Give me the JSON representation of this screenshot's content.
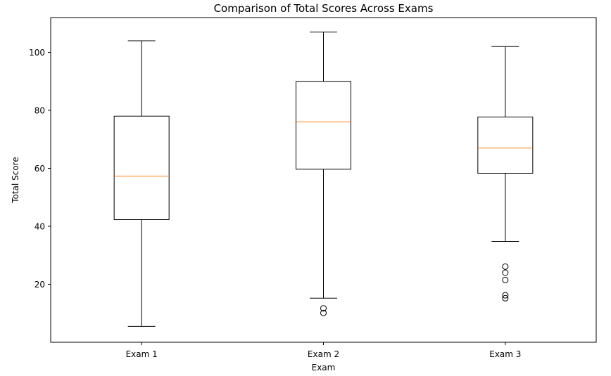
{
  "chart_data": {
    "type": "box",
    "title": "Comparison of Total Scores Across Exams",
    "xlabel": "Exam",
    "ylabel": "Total Score",
    "categories": [
      "Exam 1",
      "Exam 2",
      "Exam 3"
    ],
    "ylim": [
      0,
      112
    ],
    "yticks": [
      20,
      40,
      60,
      80,
      100
    ],
    "grid": false,
    "series": [
      {
        "category": "Exam 1",
        "whisker_low": 5.5,
        "q1": 42.3,
        "median": 57.3,
        "q3": 78,
        "whisker_high": 104,
        "outliers": []
      },
      {
        "category": "Exam 2",
        "whisker_low": 15.2,
        "q1": 59.7,
        "median": 76,
        "q3": 90,
        "whisker_high": 107,
        "outliers": [
          11.7,
          10.1
        ]
      },
      {
        "category": "Exam 3",
        "whisker_low": 34.8,
        "q1": 58.3,
        "median": 67,
        "q3": 77.7,
        "whisker_high": 102,
        "outliers": [
          26.1,
          24,
          21.5,
          16.2,
          15.2
        ]
      }
    ],
    "colors": {
      "box": "#000000",
      "median": "#ff7f0e",
      "background": "#ffffff"
    }
  }
}
